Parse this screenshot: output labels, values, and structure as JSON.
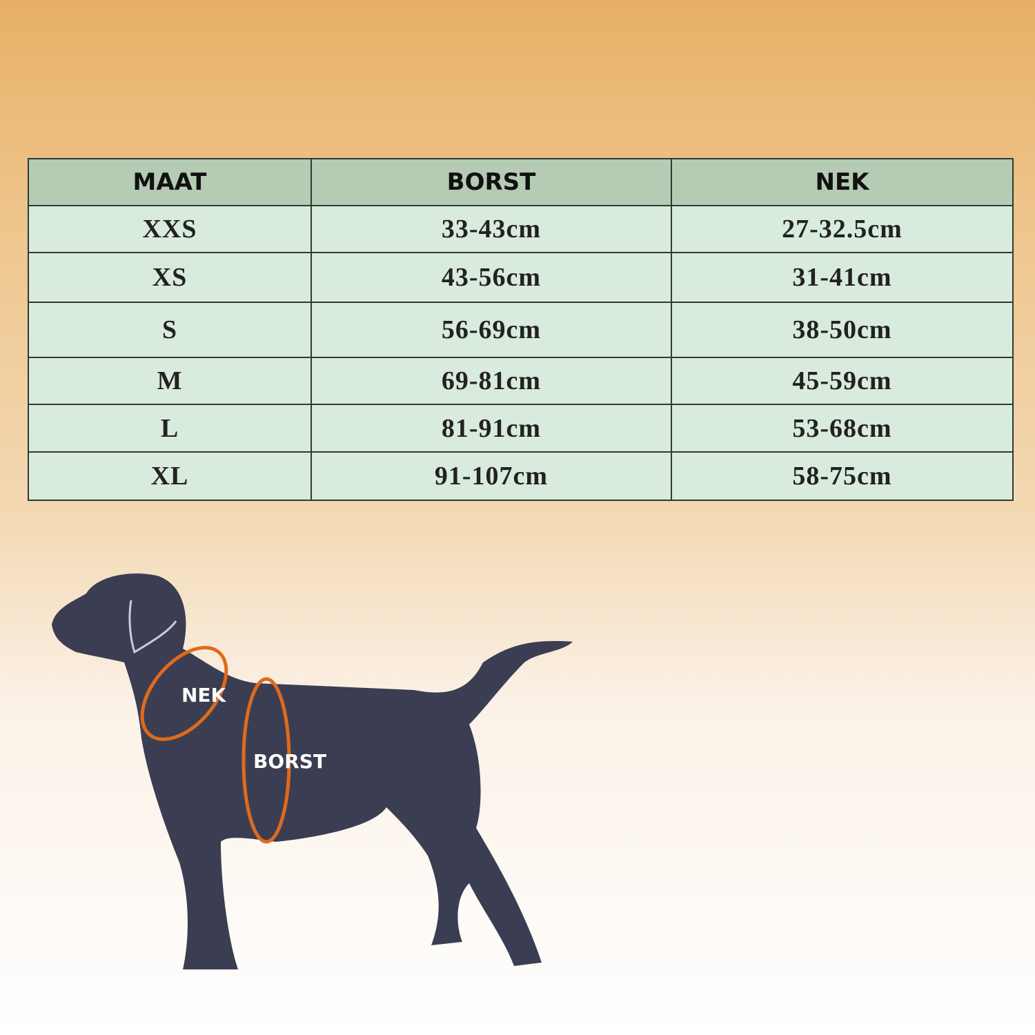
{
  "table": {
    "header": [
      "MAAT",
      "BORST",
      "NEK"
    ],
    "rows": [
      [
        "XXS",
        "33-43cm",
        "27-32.5cm"
      ],
      [
        "XS",
        "43-56cm",
        "31-41cm"
      ],
      [
        "S",
        "56-69cm",
        "38-50cm"
      ],
      [
        "M",
        "69-81cm",
        "45-59cm"
      ],
      [
        "L",
        "81-91cm",
        "53-68cm"
      ],
      [
        "XL",
        "91-107cm",
        "58-75cm"
      ]
    ]
  },
  "diagram": {
    "labels": [
      "NEK",
      "BORST"
    ]
  }
}
